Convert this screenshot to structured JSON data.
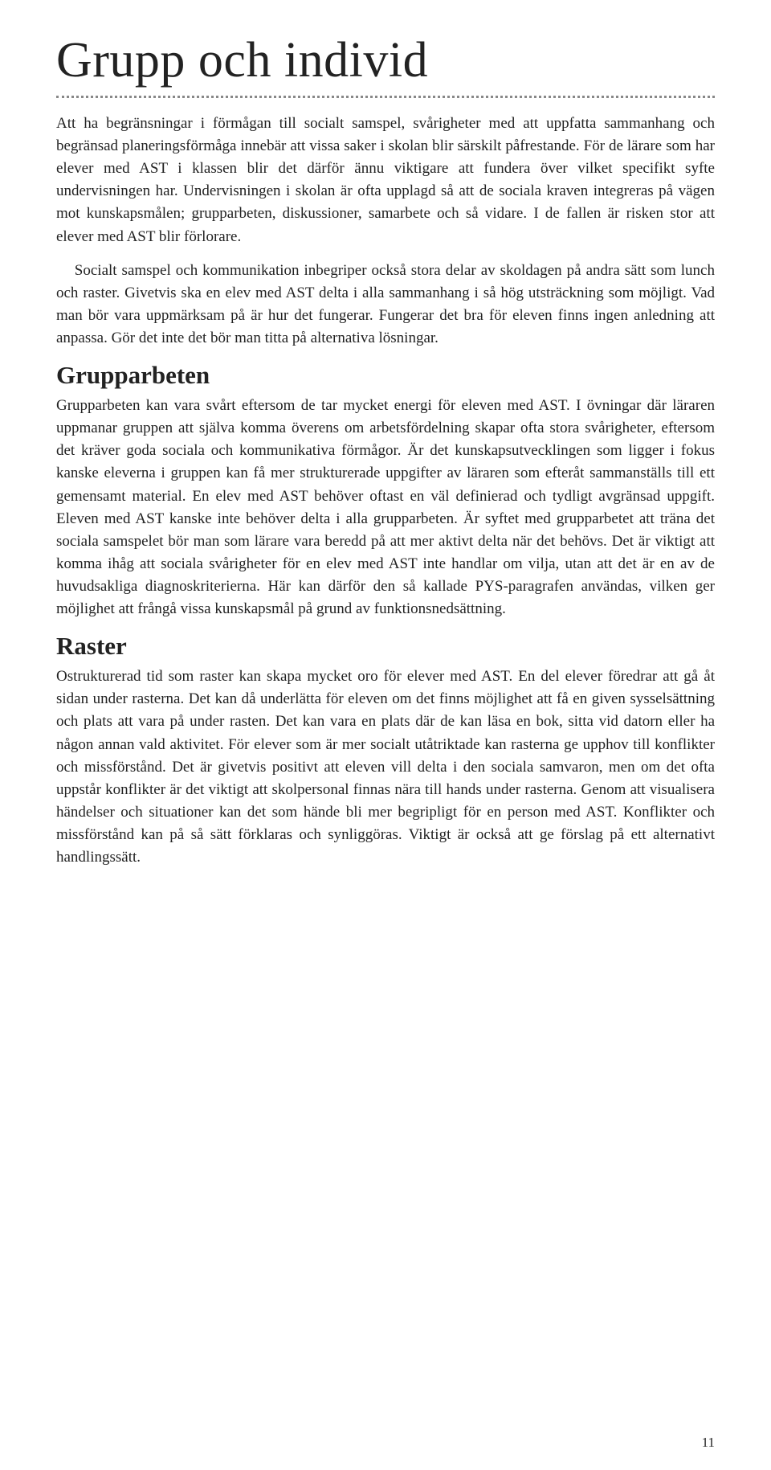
{
  "title": "Grupp och individ",
  "intro_p1": "Att ha begränsningar i förmågan till socialt samspel, svårigheter med att uppfatta sammanhang och begränsad planeringsförmåga innebär att vissa saker i skolan blir särskilt påfrestande. För de lärare som har elever med AST i klassen blir det därför ännu viktigare att fundera över vilket specifikt syfte undervisningen har. Undervisningen i skolan är ofta upplagd så att de sociala kraven integreras på vägen mot kunskapsmålen; grupparbeten, diskussioner, samarbete och så vidare. I de fallen är risken stor att elever med AST blir förlorare.",
  "intro_p2": "Socialt samspel och kommunikation inbegriper också stora delar av skoldagen på andra sätt som lunch och raster. Givetvis ska en elev med AST delta i alla sammanhang i så hög utsträckning som möjligt. Vad man bör vara uppmärksam på är hur det fungerar. Fungerar det bra för eleven finns ingen anledning att anpassa. Gör det inte det bör man titta på alternativa lösningar.",
  "section1_title": "Grupparbeten",
  "section1_body": "Grupparbeten kan vara svårt eftersom de tar mycket energi för eleven med AST. I övningar där läraren uppmanar gruppen att själva komma överens om arbetsfördelning skapar ofta stora svårigheter, eftersom det kräver goda sociala och kommunikativa förmågor. Är det kunskapsutvecklingen som ligger i fokus kanske eleverna i gruppen kan få mer strukturerade uppgifter av läraren som efteråt sammanställs till ett gemensamt material. En elev med AST behöver oftast en väl definierad och tydligt avgränsad uppgift. Eleven med AST kanske inte behöver delta i alla grupparbeten. Är syftet med grupparbetet att träna det sociala samspelet bör man som lärare vara beredd på att mer aktivt delta när det behövs. Det är viktigt att komma ihåg att sociala svårigheter för en elev med AST inte handlar om vilja, utan att det är en av de huvudsakliga diagnoskriterierna. Här kan därför den så kallade PYS-paragrafen användas, vilken ger möjlighet att frångå vissa kunskapsmål på grund av funktionsnedsättning.",
  "section2_title": "Raster",
  "section2_body": "Ostrukturerad tid som raster kan skapa mycket oro för elever med AST. En del elever föredrar att gå åt sidan under rasterna. Det kan då underlätta för eleven om det finns möjlighet att få en given sysselsättning och plats att vara på under rasten. Det kan vara en plats där de kan läsa en bok, sitta vid datorn eller ha någon annan vald aktivitet. För elever som är mer socialt utåtriktade kan rasterna ge upphov till konflikter och missförstånd. Det är givetvis positivt att eleven vill delta i den sociala samvaron, men om det ofta uppstår konflikter är det viktigt att skolpersonal finnas nära till hands under rasterna. Genom att visualisera händelser och situationer kan det som hände bli mer begripligt för en person med AST. Konflikter och missförstånd kan på så sätt förklaras och synliggöras. Viktigt är också att ge förslag på ett alternativt handlingssätt.",
  "page_number": "11"
}
